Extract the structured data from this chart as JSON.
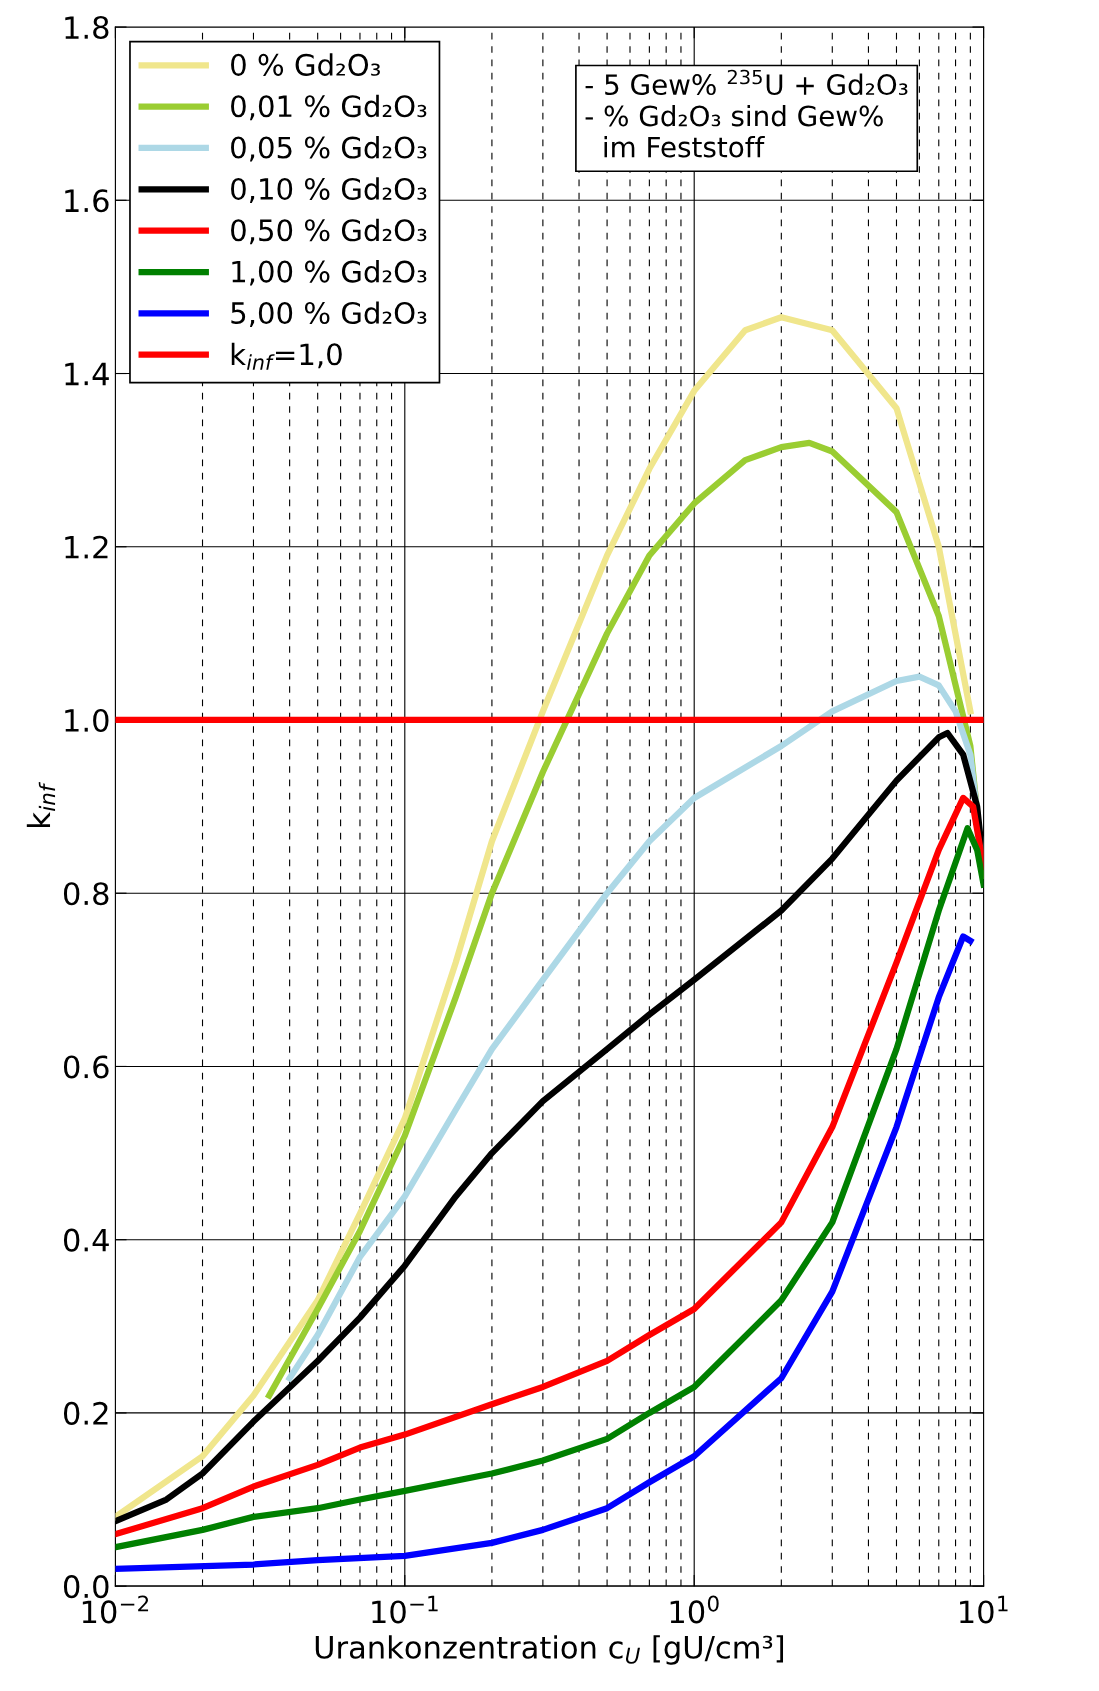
{
  "chart_data": {
    "type": "line",
    "xlabel": "Urankonzentration c$_{U}$ [gU/cm³]",
    "ylabel": "k$_{inf}$",
    "log": "x",
    "xlim": [
      0.01,
      10
    ],
    "xticks": [
      {
        "value": 0.01,
        "label": "10$^{−2}$"
      },
      {
        "value": 0.1,
        "label": "10$^{−1}$"
      },
      {
        "value": 1,
        "label": "10$^{0}$"
      },
      {
        "value": 10,
        "label": "10$^{1}$"
      }
    ],
    "ylim": [
      0,
      1.8
    ],
    "yticks": [
      {
        "value": 0,
        "label": "0.0"
      },
      {
        "value": 0.2,
        "label": "0.2"
      },
      {
        "value": 0.4,
        "label": "0.4"
      },
      {
        "value": 0.6,
        "label": "0.6"
      },
      {
        "value": 0.8,
        "label": "0.8"
      },
      {
        "value": 1.0,
        "label": "1.0"
      },
      {
        "value": 1.2,
        "label": "1.2"
      },
      {
        "value": 1.4,
        "label": "1.4"
      },
      {
        "value": 1.6,
        "label": "1.6"
      },
      {
        "value": 1.8,
        "label": "1.8"
      }
    ],
    "grid": true,
    "legend": "top left",
    "line_style": "solid",
    "marker": "none",
    "series": [
      {
        "name": "0 % Gd₂O₃",
        "color": "#f0e68c",
        "x": [
          0.01,
          0.02,
          0.03,
          0.05,
          0.07,
          0.1,
          0.15,
          0.2,
          0.3,
          0.5,
          0.7,
          1,
          1.5,
          2,
          3,
          5,
          7,
          9
        ],
        "values": [
          0.08,
          0.15,
          0.22,
          0.33,
          0.43,
          0.54,
          0.72,
          0.86,
          1.01,
          1.19,
          1.29,
          1.38,
          1.45,
          1.465,
          1.45,
          1.36,
          1.2,
          1.01
        ]
      },
      {
        "name": "0,01 % Gd₂O₃",
        "color": "#9acd32",
        "x": [
          0.034,
          0.05,
          0.07,
          0.1,
          0.15,
          0.2,
          0.3,
          0.4,
          0.5,
          0.7,
          1,
          1.5,
          2,
          2.5,
          3,
          5,
          7,
          9,
          10
        ],
        "values": [
          0.22,
          0.32,
          0.41,
          0.52,
          0.68,
          0.8,
          0.94,
          1.03,
          1.1,
          1.19,
          1.25,
          1.3,
          1.315,
          1.32,
          1.31,
          1.24,
          1.12,
          0.97,
          0.82
        ]
      },
      {
        "name": "0,05 % Gd₂O₃",
        "color": "#add8e6",
        "x": [
          0.04,
          0.05,
          0.07,
          0.1,
          0.15,
          0.2,
          0.3,
          0.5,
          0.7,
          1,
          2,
          3,
          5,
          6,
          7,
          8,
          9,
          10
        ],
        "values": [
          0.24,
          0.29,
          0.38,
          0.45,
          0.55,
          0.62,
          0.7,
          0.8,
          0.86,
          0.91,
          0.97,
          1.01,
          1.045,
          1.05,
          1.04,
          1.01,
          0.96,
          0.83
        ]
      },
      {
        "name": "0,10 % Gd₂O₃",
        "color": "#000000",
        "x": [
          0.01,
          0.015,
          0.02,
          0.03,
          0.05,
          0.07,
          0.1,
          0.15,
          0.2,
          0.3,
          0.5,
          0.7,
          1,
          2,
          3,
          5,
          7,
          7.5,
          8.5,
          9.5,
          10
        ],
        "values": [
          0.075,
          0.1,
          0.13,
          0.19,
          0.26,
          0.31,
          0.37,
          0.45,
          0.5,
          0.56,
          0.62,
          0.66,
          0.7,
          0.78,
          0.84,
          0.93,
          0.98,
          0.985,
          0.96,
          0.9,
          0.83
        ]
      },
      {
        "name": "0,50 % Gd₂O₃",
        "color": "#ff0000",
        "x": [
          0.01,
          0.02,
          0.03,
          0.05,
          0.07,
          0.1,
          0.2,
          0.3,
          0.5,
          0.7,
          1,
          2,
          3,
          5,
          7,
          8.5,
          9.2,
          10
        ],
        "values": [
          0.06,
          0.09,
          0.115,
          0.14,
          0.16,
          0.175,
          0.21,
          0.23,
          0.26,
          0.29,
          0.32,
          0.42,
          0.53,
          0.72,
          0.85,
          0.91,
          0.9,
          0.83
        ]
      },
      {
        "name": "1,00 % Gd₂O₃",
        "color": "#008000",
        "x": [
          0.01,
          0.02,
          0.03,
          0.05,
          0.07,
          0.1,
          0.2,
          0.3,
          0.5,
          0.7,
          1,
          2,
          3,
          5,
          7,
          8.8,
          9.5,
          10
        ],
        "values": [
          0.045,
          0.065,
          0.08,
          0.09,
          0.1,
          0.11,
          0.13,
          0.145,
          0.17,
          0.2,
          0.23,
          0.33,
          0.42,
          0.62,
          0.78,
          0.875,
          0.85,
          0.81
        ]
      },
      {
        "name": "5,00 % Gd₂O₃",
        "color": "#0000ff",
        "x": [
          0.01,
          0.03,
          0.05,
          0.1,
          0.2,
          0.3,
          0.5,
          0.7,
          1,
          2,
          3,
          5,
          7,
          8.5,
          9
        ],
        "values": [
          0.02,
          0.025,
          0.03,
          0.035,
          0.05,
          0.065,
          0.09,
          0.12,
          0.15,
          0.24,
          0.34,
          0.53,
          0.68,
          0.75,
          0.745
        ]
      }
    ],
    "ref_lines": [
      {
        "axis": "y",
        "value": 1.0,
        "label": "k$_{inf}$=1,0",
        "color": "#ff0000"
      }
    ],
    "annotations": [
      "- 5 Gew% $^{235}$U + Gd₂O₃\n- % Gd₂O₃ sind Gew%\n  im Feststoff"
    ]
  }
}
